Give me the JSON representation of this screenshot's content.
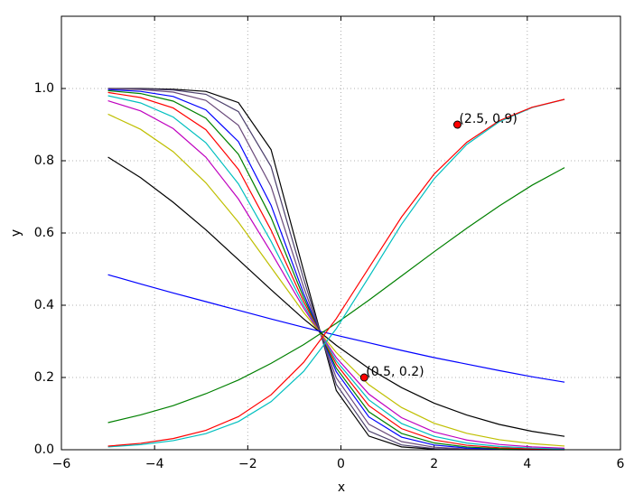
{
  "chart_data": {
    "type": "line",
    "xlabel": "x",
    "ylabel": "y",
    "xlim": [
      -6,
      6
    ],
    "xticks": [
      {
        "value": -6,
        "label": "−6"
      },
      {
        "value": -4,
        "label": "−4"
      },
      {
        "value": -2,
        "label": "−2"
      },
      0,
      2,
      4,
      6
    ],
    "ylim": [
      0,
      1.2
    ],
    "yticks": [
      {
        "value": 0,
        "label": "0.0"
      },
      0.2,
      0.4,
      0.6,
      0.8,
      {
        "value": 1,
        "label": "1.0"
      }
    ],
    "grid": true,
    "x": [
      -5,
      -4.3,
      -3.6,
      -2.9,
      -2.2,
      -1.5,
      -0.8,
      -0.1,
      0.6,
      1.3,
      2.0,
      2.7,
      3.4,
      4.1,
      4.8
    ],
    "series": [
      {
        "color": "#000000",
        "values": [
          1.0,
          1.0,
          0.998,
          0.992,
          0.961,
          0.831,
          0.495,
          0.164,
          0.0377,
          0.0078,
          0.0016,
          0.0003,
          0.0001,
          0,
          0
        ]
      },
      {
        "color": "#4b3f6b",
        "values": [
          1.0,
          0.999,
          0.996,
          0.984,
          0.936,
          0.784,
          0.4725,
          0.181,
          0.0517,
          0.0133,
          0.0033,
          0.0008,
          0.0002,
          0,
          0
        ]
      },
      {
        "color": "#6a4a7a",
        "values": [
          0.999,
          0.997,
          0.99,
          0.967,
          0.898,
          0.729,
          0.45,
          0.199,
          0.0704,
          0.0225,
          0.007,
          0.0021,
          0.0006,
          0.0002,
          0.0001
        ]
      },
      {
        "color": "#0000ff",
        "values": [
          0.997,
          0.992,
          0.978,
          0.941,
          0.853,
          0.677,
          0.432,
          0.216,
          0.0907,
          0.0349,
          0.0129,
          0.0047,
          0.0017,
          0.0006,
          0.0002
        ]
      },
      {
        "color": "#008000",
        "values": [
          0.994,
          0.986,
          0.965,
          0.918,
          0.818,
          0.643,
          0.421,
          0.226,
          0.105,
          0.0452,
          0.0187,
          0.0076,
          0.0031,
          0.0012,
          0.0005
        ]
      },
      {
        "color": "#ff0000",
        "values": [
          0.989,
          0.975,
          0.946,
          0.886,
          0.776,
          0.608,
          0.41,
          0.237,
          0.122,
          0.0584,
          0.027,
          0.0123,
          0.0055,
          0.0025,
          0.0011
        ]
      },
      {
        "color": "#00bfbf",
        "values": [
          0.98,
          0.96,
          0.921,
          0.85,
          0.736,
          0.577,
          0.4,
          0.246,
          0.138,
          0.0727,
          0.037,
          0.0184,
          0.0091,
          0.0045,
          0.0022
        ]
      },
      {
        "color": "#bf00bf",
        "values": [
          0.966,
          0.938,
          0.889,
          0.81,
          0.694,
          0.547,
          0.392,
          0.255,
          0.154,
          0.0887,
          0.0493,
          0.0269,
          0.0145,
          0.0078,
          0.0042
        ]
      },
      {
        "color": "#bfbf00",
        "values": [
          0.929,
          0.887,
          0.825,
          0.739,
          0.63,
          0.505,
          0.38,
          0.269,
          0.18,
          0.117,
          0.0734,
          0.0455,
          0.0277,
          0.0168,
          0.0102
        ]
      },
      {
        "color": "#000000",
        "values": [
          0.81,
          0.753,
          0.685,
          0.609,
          0.526,
          0.443,
          0.362,
          0.289,
          0.225,
          0.172,
          0.129,
          0.096,
          0.07,
          0.051,
          0.037
        ]
      },
      {
        "color": "#0000ff",
        "values": [
          0.4845,
          0.459,
          0.434,
          0.41,
          0.386,
          0.362,
          0.339,
          0.317,
          0.296,
          0.275,
          0.255,
          0.237,
          0.219,
          0.202,
          0.187
        ]
      },
      {
        "color": "#008000",
        "values": [
          0.075,
          0.0963,
          0.122,
          0.155,
          0.193,
          0.239,
          0.291,
          0.35,
          0.414,
          0.481,
          0.548,
          0.613,
          0.675,
          0.732,
          0.781
        ]
      },
      {
        "color": "#00bfbf",
        "values": [
          0.0078,
          0.014,
          0.0251,
          0.0446,
          0.078,
          0.133,
          0.217,
          0.335,
          0.478,
          0.624,
          0.75,
          0.845,
          0.908,
          0.947,
          0.97
        ]
      },
      {
        "color": "#ff0000",
        "values": [
          0.01,
          0.0176,
          0.0309,
          0.0537,
          0.0917,
          0.152,
          0.242,
          0.363,
          0.5035,
          0.644,
          0.763,
          0.851,
          0.911,
          0.948,
          0.97
        ]
      }
    ],
    "points": [
      {
        "x": 2.5,
        "y": 0.9,
        "label": "(2.5, 0.9)"
      },
      {
        "x": 0.5,
        "y": 0.2,
        "label": "(0.5, 0.2)"
      }
    ],
    "point_color": "#ff0000"
  }
}
